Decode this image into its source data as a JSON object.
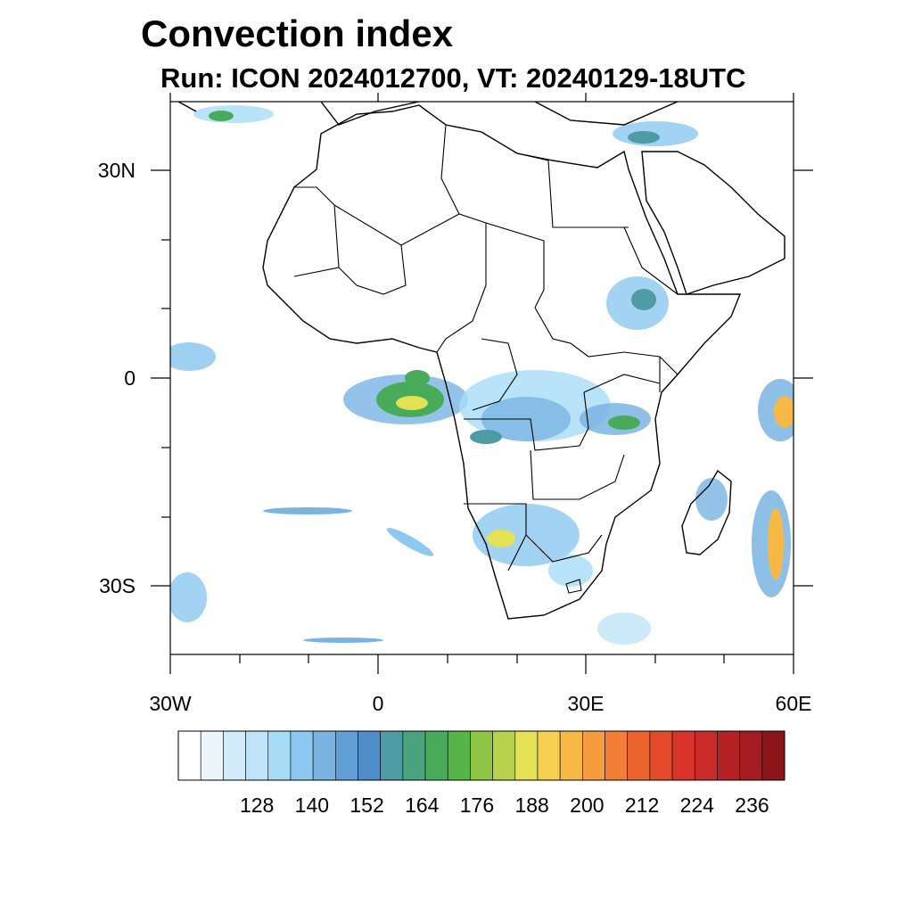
{
  "title": "Convection index",
  "subtitle": "Run: ICON 2024012700,  VT: 20240129-18UTC",
  "map": {
    "region": "Africa",
    "lon_range": [
      -30,
      60
    ],
    "lat_range": [
      -40,
      40
    ],
    "x_tick_labels": [
      "30W",
      "0",
      "30E",
      "60E"
    ],
    "y_tick_labels": [
      "30N",
      "0",
      "30S"
    ]
  },
  "colorbar": {
    "labels": [
      "128",
      "140",
      "152",
      "164",
      "176",
      "188",
      "200",
      "212",
      "224",
      "236"
    ],
    "colors": [
      "#ffffff",
      "#eaf6fc",
      "#d2ecf9",
      "#bfe4f7",
      "#a6dcf6",
      "#8cc8ef",
      "#79b4e3",
      "#5f9fd6",
      "#4e8dc7",
      "#4e9aa5",
      "#4aa37c",
      "#48ab5a",
      "#55b548",
      "#8fc444",
      "#b7d24e",
      "#e4e154",
      "#f5d050",
      "#f6b946",
      "#f59d3e",
      "#f27f35",
      "#ec632d",
      "#e24a29",
      "#d83328",
      "#c92a2a",
      "#b52226",
      "#a41c22",
      "#8a1519"
    ]
  }
}
